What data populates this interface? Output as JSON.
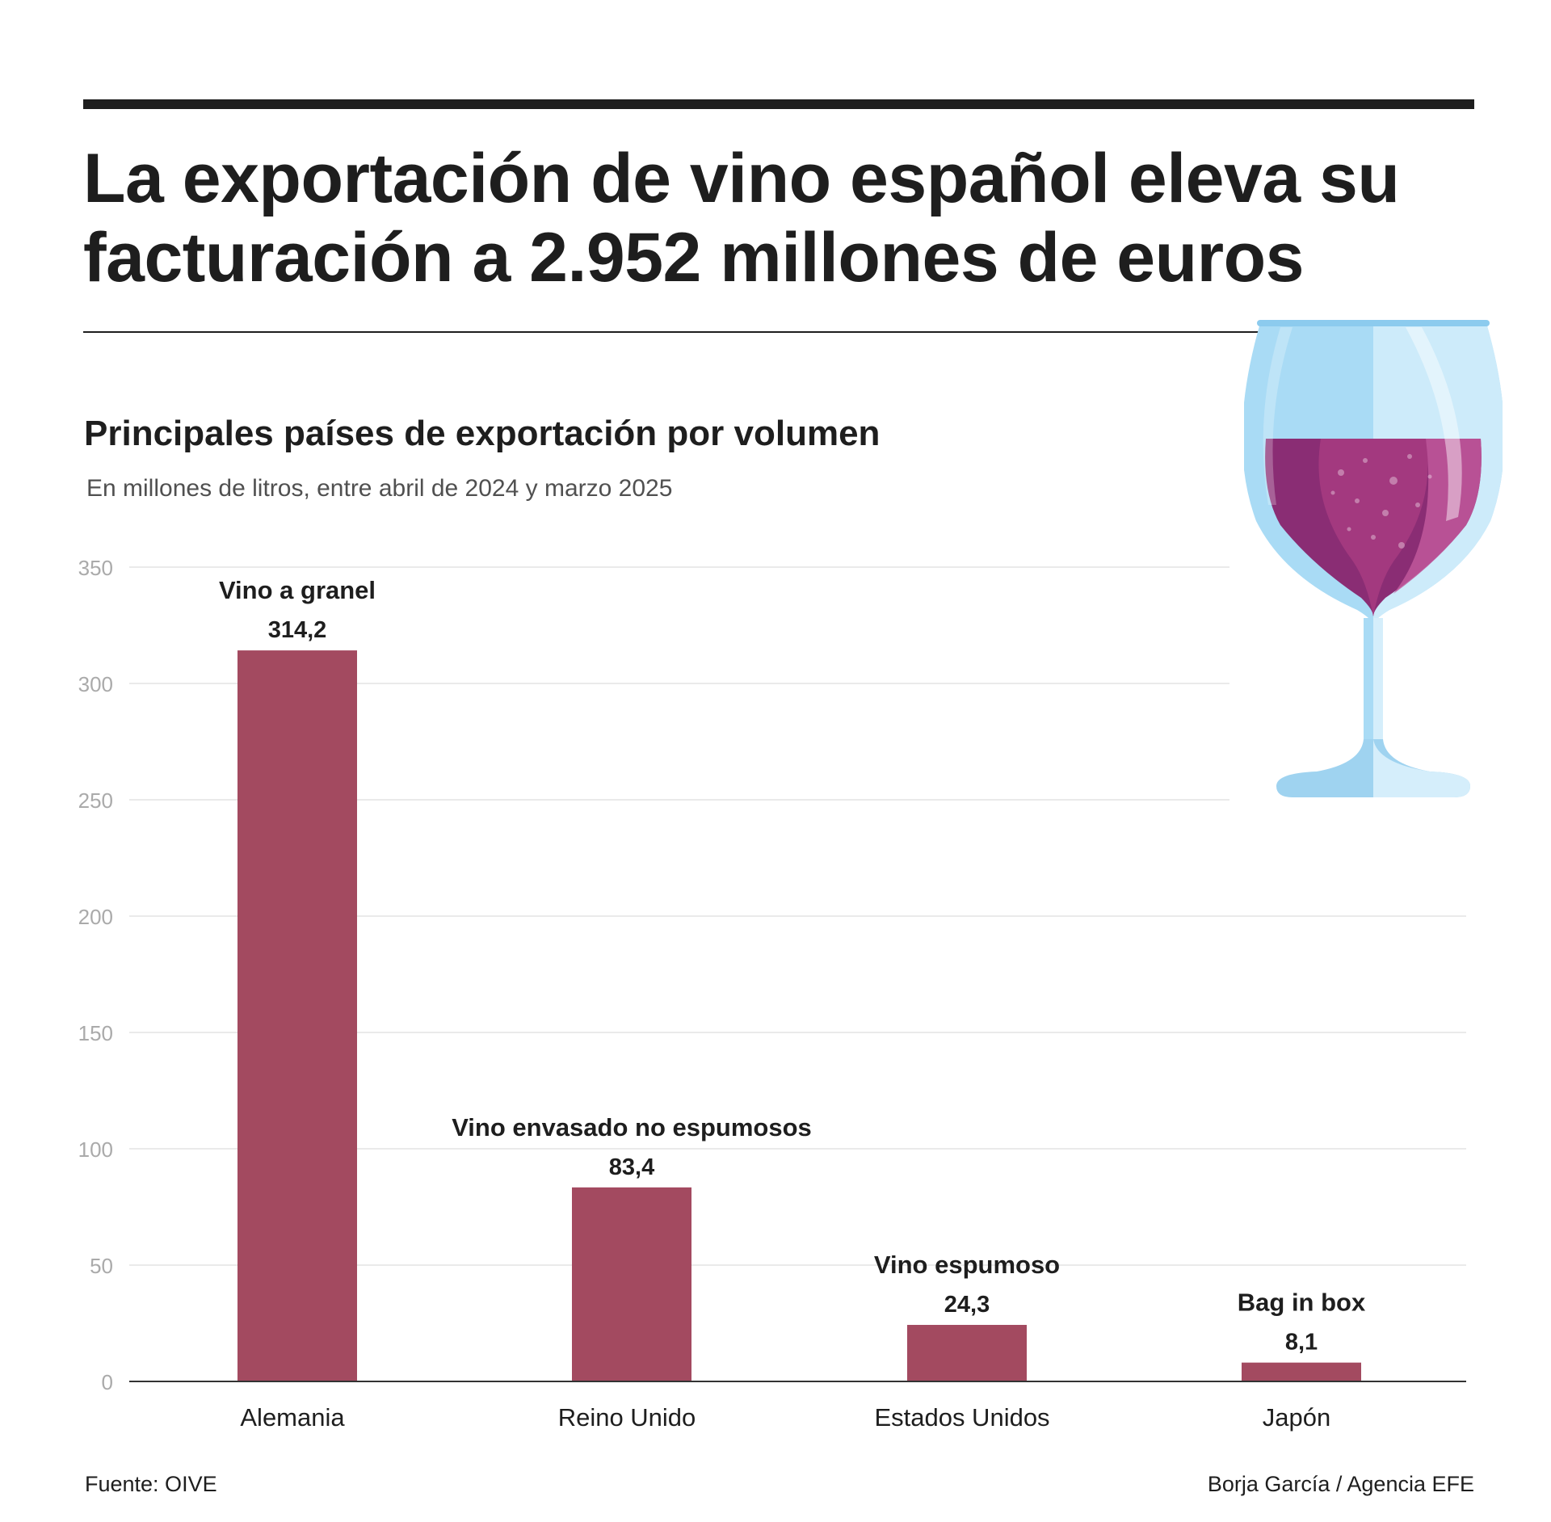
{
  "headline": "La exportación de vino español eleva su facturación a 2.952 millones de euros",
  "footer": {
    "source": "Fuente: OIVE",
    "credit": "Borja García / Agencia EFE"
  },
  "colors": {
    "bar": "#a34a60",
    "grid": "#e3e3e3",
    "tick": "#aaaaaa",
    "wine": "#8f2e6d",
    "glass": "#9fd3f0"
  },
  "icons": [
    "wine-glass-icon"
  ],
  "chart_data": {
    "type": "bar",
    "title": "Principales países de exportación por volumen",
    "subtitle": "En millones de litros, entre abril de 2024 y marzo 2025",
    "categories": [
      "Alemania",
      "Reino Unido",
      "Estados Unidos",
      "Japón"
    ],
    "values": [
      314.2,
      83.4,
      24.3,
      8.1
    ],
    "value_labels": [
      "314,2",
      "83,4",
      "24,3",
      "8,1"
    ],
    "annotations": [
      "Vino a granel",
      "Vino envasado no espumosos",
      "Vino espumoso",
      "Bag in box"
    ],
    "ylim": [
      0,
      350
    ],
    "yticks": [
      0,
      50,
      100,
      150,
      200,
      250,
      300,
      350
    ],
    "grid": true,
    "legend": "none"
  }
}
